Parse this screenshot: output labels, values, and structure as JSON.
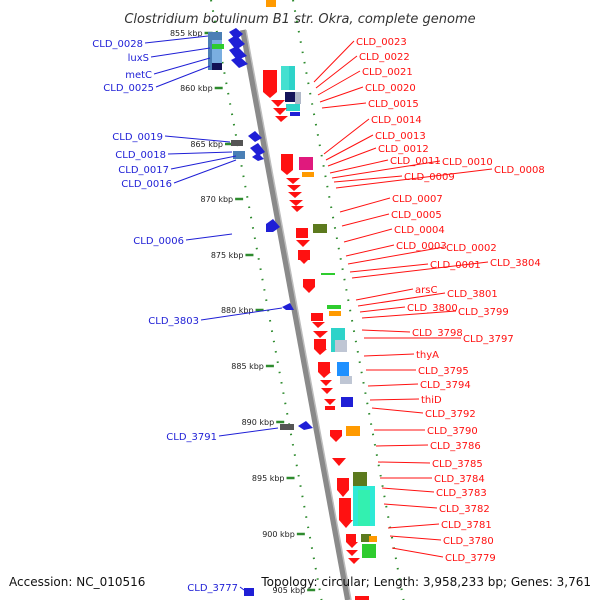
{
  "title": "Clostridium botulinum B1 str. Okra, complete genome",
  "footer": {
    "accession": "Accession: NC_010516",
    "summary": "Topology: circular; Length: 3,958,233 bp; Genes: 3,761"
  },
  "colors": {
    "forward": "#1f1fd6",
    "reverse": "#ff1111",
    "backbone": "#8a8a8a",
    "ticks": "#2e8b2e"
  },
  "ticks": [
    "855 kbp",
    "860 kbp",
    "865 kbp",
    "870 kbp",
    "875 kbp",
    "880 kbp",
    "885 kbp",
    "890 kbp",
    "895 kbp",
    "900 kbp",
    "905 kbp"
  ],
  "left_labels": [
    "CLD_0028",
    "luxS",
    "metC",
    "CLD_0025",
    "CLD_0019",
    "CLD_0018",
    "CLD_0017",
    "CLD_0016",
    "CLD_0006",
    "CLD_3803",
    "CLD_3791",
    "CLD_3777"
  ],
  "right_labels": [
    "CLD_0023",
    "CLD_0022",
    "CLD_0021",
    "CLD_0020",
    "CLD_0015",
    "CLD_0014",
    "CLD_0013",
    "CLD_0012",
    "CLD_0011",
    "CLD_0010",
    "CLD_0009",
    "CLD_0008",
    "CLD_0007",
    "CLD_0005",
    "CLD_0004",
    "CLD_0003",
    "CLD_0002",
    "CLD_0001",
    "CLD_3804",
    "arsC",
    "CLD_3801",
    "CLD_3800",
    "CLD_3799",
    "CLD_3798",
    "CLD_3797",
    "thyA",
    "CLD_3795",
    "CLD_3794",
    "thiD",
    "CLD_3792",
    "CLD_3790",
    "CLD_3786",
    "CLD_3785",
    "CLD_3784",
    "CLD_3783",
    "CLD_3782",
    "CLD_3781",
    "CLD_3780",
    "CLD_3779"
  ]
}
